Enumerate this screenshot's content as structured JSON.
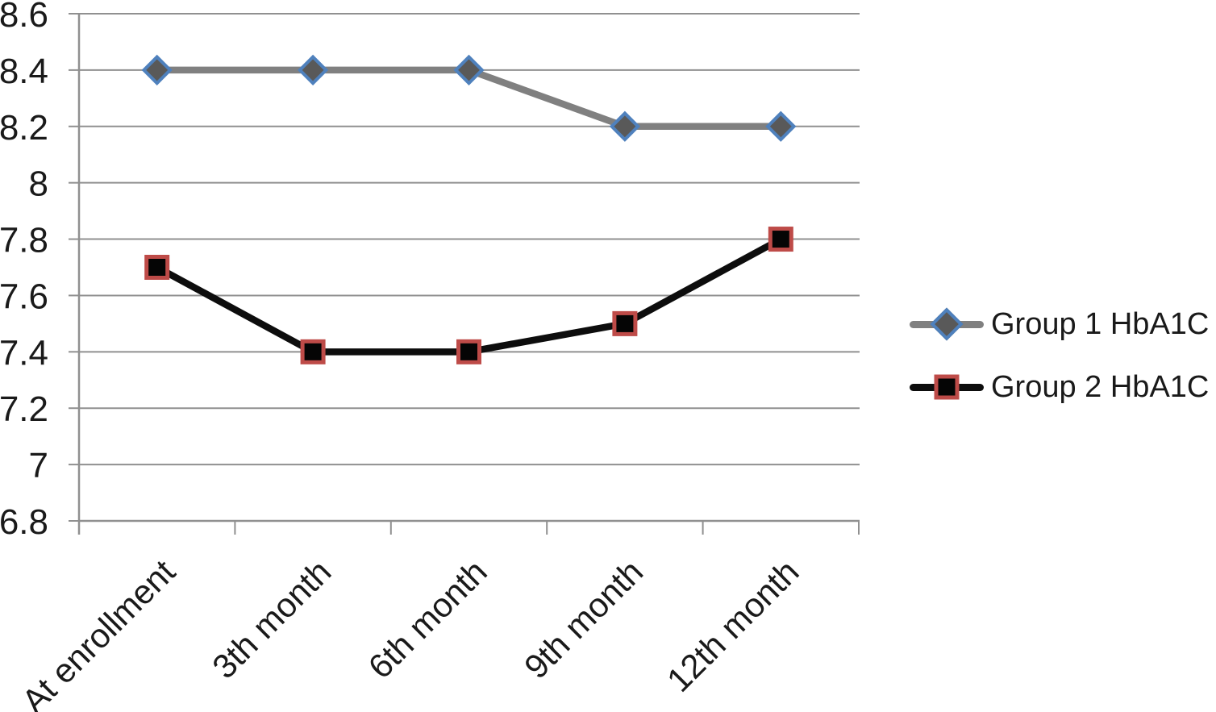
{
  "chart_data": {
    "type": "line",
    "title": "",
    "xlabel": "",
    "ylabel": "",
    "categories": [
      "At enrollment",
      "3th month",
      "6th month",
      "9th month",
      "12th month"
    ],
    "series": [
      {
        "name": "Group 1 HbA1C",
        "values": [
          8.4,
          8.4,
          8.4,
          8.2,
          8.2
        ],
        "line_color": "#808080",
        "marker": "diamond",
        "marker_fill": "#595959",
        "marker_stroke": "#4f81bd"
      },
      {
        "name": "Group 2 HbA1C",
        "values": [
          7.7,
          7.4,
          7.4,
          7.5,
          7.8
        ],
        "line_color": "#0d0d0d",
        "marker": "square",
        "marker_fill": "#050505",
        "marker_stroke": "#be4b48"
      }
    ],
    "ylim": [
      6.8,
      8.6
    ],
    "ytick_step": 0.2,
    "ytick_labels": [
      "8.6",
      "8.4",
      "8.2",
      "8",
      "7.8",
      "7.6",
      "7.4",
      "7.2",
      "7",
      "6.8"
    ],
    "grid": "horizontal",
    "legend_position": "right",
    "axis_color": "#909090",
    "text_color": "#1a1a1a"
  }
}
